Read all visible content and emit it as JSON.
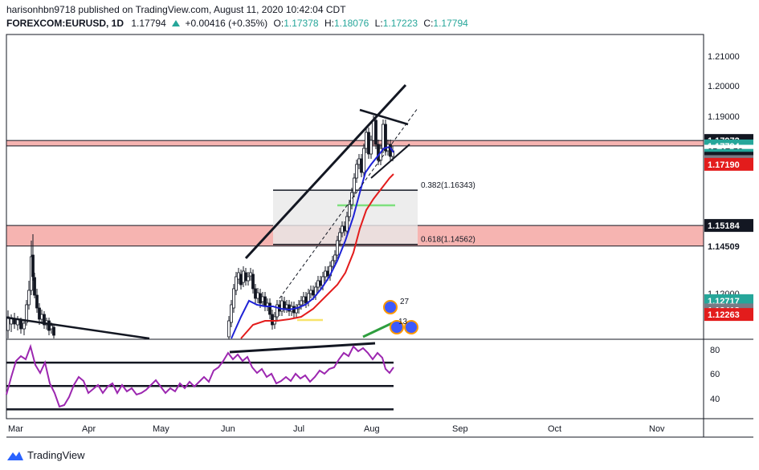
{
  "header": {
    "line1": "harisonhbn9718 published on TradingView.com, August 11, 2020 10:42:04 CDT",
    "symbol": "FOREXCOM:EURUSD, 1D",
    "last": "1.17794",
    "change": "+0.00416 (+0.35%)",
    "o_label": "O:",
    "o": "1.17378",
    "h_label": "H:",
    "h": "1.18076",
    "l_label": "L:",
    "l": "1.17223",
    "c_label": "C:",
    "c": "1.17794"
  },
  "footer": {
    "brand": "TradingView"
  },
  "colors": {
    "up": "#26a69a",
    "red": "#e53935",
    "zone": "#f4a7a3",
    "ema_fast": "#1e22d6",
    "ema_slow": "#e31c1c",
    "rsi": "#9c27b0"
  },
  "chart_data": {
    "type": "candlestick",
    "price_axis": {
      "range": [
        1.1145,
        1.2145
      ],
      "ticks": [
        "1.21000",
        "1.20000",
        "1.19000",
        "1.12000"
      ]
    },
    "price_labels": [
      {
        "value": 1.17972,
        "text": "1.17972",
        "bg": "#131722",
        "fg": "#ffffff"
      },
      {
        "value": 1.17794,
        "text": "1.17794",
        "bg": "#26a69a",
        "fg": "#ffffff"
      },
      {
        "value": 1.1762,
        "text": "05:17:58",
        "bg": "#ffffff",
        "fg": "#131722"
      },
      {
        "value": 1.17485,
        "text": "1.17485",
        "bg": "#26a69a",
        "fg": "#ffffff"
      },
      {
        "value": 1.1739,
        "text": "1.17390",
        "bg": "#131722",
        "fg": "#ffffff"
      },
      {
        "value": 1.1728,
        "text": "1.17280",
        "bg": "#787b86",
        "fg": "#ffffff"
      },
      {
        "value": 1.1719,
        "text": "1.17190",
        "bg": "#e31c1c",
        "fg": "#ffffff"
      },
      {
        "value": 1.15184,
        "text": "1.15184",
        "bg": "#131722",
        "fg": "#ffffff"
      },
      {
        "value": 1.14509,
        "text": "1.14509",
        "bg": "#ffffff",
        "fg": "#131722"
      },
      {
        "value": 1.12717,
        "text": "1.12717",
        "bg": "#26a69a",
        "fg": "#ffffff"
      },
      {
        "value": 1.12413,
        "text": "1.12413",
        "bg": "#787b86",
        "fg": "#ffffff"
      },
      {
        "value": 1.12263,
        "text": "1.12263",
        "bg": "#e31c1c",
        "fg": "#ffffff"
      }
    ],
    "zones": [
      {
        "from": 1.17794,
        "to": 1.17972
      },
      {
        "from": 1.14509,
        "to": 1.15184
      }
    ],
    "fib_levels": [
      {
        "label": "0.382(1.16343)",
        "value": 1.16343
      },
      {
        "label": "0.618(1.14562)",
        "value": 1.14562
      }
    ],
    "time_axis": {
      "labels": [
        "Mar",
        "Apr",
        "May",
        "Jun",
        "Jul",
        "Aug",
        "Sep",
        "Oct",
        "Nov"
      ]
    },
    "rsi_axis": {
      "range": [
        22,
        88
      ],
      "ticks": [
        "80",
        "60",
        "40"
      ],
      "levels": [
        70,
        50,
        30
      ]
    },
    "event_badges": [
      "27",
      "13"
    ],
    "candles_pixel_trace": [
      [
        10,
        412,
        395,
        422,
        387
      ],
      [
        14,
        404,
        396,
        414,
        392
      ],
      [
        18,
        398,
        404,
        410,
        390
      ],
      [
        22,
        405,
        398,
        412,
        394
      ],
      [
        26,
        400,
        410,
        416,
        396
      ],
      [
        30,
        410,
        403,
        418,
        398
      ],
      [
        33,
        402,
        380,
        406,
        374
      ],
      [
        36,
        380,
        362,
        386,
        350
      ],
      [
        39,
        362,
        320,
        368,
        300
      ],
      [
        41,
        318,
        345,
        350,
        292
      ],
      [
        43,
        346,
        368,
        372,
        340
      ],
      [
        46,
        368,
        384,
        390,
        360
      ],
      [
        49,
        384,
        398,
        405,
        378
      ],
      [
        52,
        398,
        392,
        404,
        386
      ],
      [
        55,
        392,
        405,
        410,
        388
      ],
      [
        58,
        405,
        400,
        411,
        396
      ],
      [
        61,
        400,
        412,
        418,
        396
      ],
      [
        64,
        410,
        406,
        416,
        402
      ],
      [
        67,
        408,
        418,
        422,
        404
      ]
    ]
  }
}
